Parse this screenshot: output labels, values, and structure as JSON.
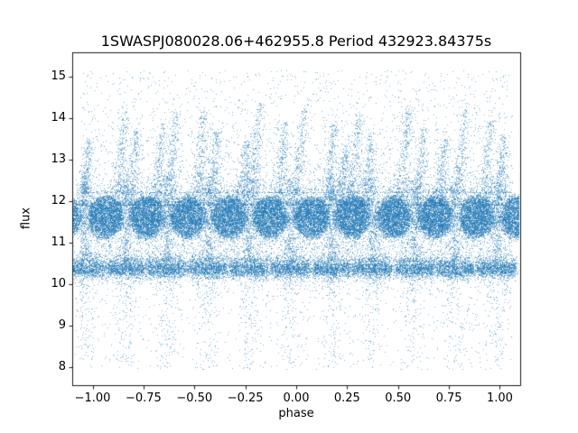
{
  "chart_data": {
    "type": "scatter",
    "title": "1SWASPJ080028.06+462955.8 Period 432923.84375s",
    "xlabel": "phase",
    "ylabel": "flux",
    "xlim": [
      -1.1,
      1.1
    ],
    "ylim": [
      7.56,
      15.58
    ],
    "grid": false,
    "legend": null,
    "axes_rect": [
      80,
      58,
      496,
      369
    ],
    "x_ticks": {
      "values": [
        -1.0,
        -0.75,
        -0.5,
        -0.25,
        0.0,
        0.25,
        0.5,
        0.75,
        1.0
      ],
      "labels": [
        "−1.00",
        "−0.75",
        "−0.50",
        "−0.25",
        "0.00",
        "0.25",
        "0.50",
        "0.75",
        "1.00"
      ]
    },
    "y_ticks": {
      "values": [
        8,
        9,
        10,
        11,
        12,
        13,
        14,
        15
      ],
      "labels": [
        "8",
        "9",
        "10",
        "11",
        "12",
        "13",
        "14",
        "15"
      ]
    },
    "marker_color_rgb": [
      31,
      119,
      180
    ],
    "marker_alpha": 0.55,
    "axis_color": "#000000",
    "point_cloud": {
      "seed": 9,
      "base_band": {
        "mu": 11.62,
        "sigma": 0.28,
        "n": 7000,
        "x_range": [
          -1.06,
          1.06
        ],
        "wide_frac": 0.15,
        "wide_mult": 1.9
      },
      "main_blobs": {
        "centers": [
          -1.143,
          -0.94,
          -0.737,
          -0.535,
          -0.332,
          -0.13,
          0.073,
          0.275,
          0.478,
          0.68,
          0.883,
          1.086
        ],
        "rx": 0.085,
        "ry": 0.5,
        "mu": 11.62,
        "n_each": 2700,
        "fuzz": 0.1
      },
      "secondary_band": {
        "centers": [
          -1.04,
          -0.84,
          -0.638,
          -0.435,
          -0.233,
          -0.03,
          0.173,
          0.375,
          0.578,
          0.78,
          0.983
        ],
        "halfwidth": 0.095,
        "mu": 10.38,
        "sigma": 0.12,
        "n_each": 1200,
        "x_jitter": 0.008,
        "tail_frac": 0.12,
        "tail": 0.35
      },
      "gap_columns": {
        "centers": [
          -1.04,
          -0.84,
          -0.638,
          -0.435,
          -0.233,
          -0.03,
          0.173,
          0.375,
          0.578,
          0.78,
          0.983
        ],
        "sigma": 0.016,
        "flux_range": [
          10.55,
          12.6
        ],
        "n_each": 300,
        "bias": 1.25
      },
      "plumes": {
        "base_flux": 11.9,
        "width": 0.022,
        "n_each": 360,
        "height_bias": 1.7,
        "tip_frac": 0.08,
        "tip_extra": 0.35,
        "items": [
          [
            -1.05,
            13.5,
            0.03
          ],
          [
            -0.88,
            14.2,
            0.04
          ],
          [
            -0.815,
            13.7,
            0.03
          ],
          [
            -0.69,
            13.9,
            0.035
          ],
          [
            -0.625,
            14.15,
            0.035
          ],
          [
            -0.49,
            14.2,
            0.035
          ],
          [
            -0.42,
            13.7,
            0.03
          ],
          [
            -0.27,
            13.45,
            0.03
          ],
          [
            -0.22,
            14.35,
            0.04
          ],
          [
            -0.09,
            13.9,
            0.035
          ],
          [
            -0.01,
            14.2,
            0.05
          ],
          [
            0.15,
            13.85,
            0.035
          ],
          [
            0.215,
            13.4,
            0.03
          ],
          [
            0.27,
            14.1,
            0.04
          ],
          [
            0.34,
            13.65,
            0.03
          ],
          [
            0.51,
            14.25,
            0.04
          ],
          [
            0.59,
            13.8,
            0.035
          ],
          [
            0.7,
            13.5,
            0.03
          ],
          [
            0.79,
            14.2,
            0.04
          ],
          [
            0.92,
            13.95,
            0.035
          ],
          [
            0.99,
            13.6,
            0.03
          ]
        ]
      },
      "high_scatter": {
        "n": 3000,
        "flux_range": [
          12.2,
          15.15
        ],
        "bias": 2.2,
        "x_range": [
          -1.06,
          1.06
        ]
      },
      "low_scatter": {
        "n": 2800,
        "flux_range": [
          7.95,
          10.3
        ],
        "bias": 2.0,
        "column_frac": 0.6,
        "column_sigma": 0.03,
        "x_range": [
          -1.06,
          1.06
        ]
      },
      "mid_scatter": {
        "n": 1500,
        "flux_range": [
          10.55,
          11.15
        ],
        "x_range": [
          -1.06,
          1.06
        ]
      }
    }
  }
}
